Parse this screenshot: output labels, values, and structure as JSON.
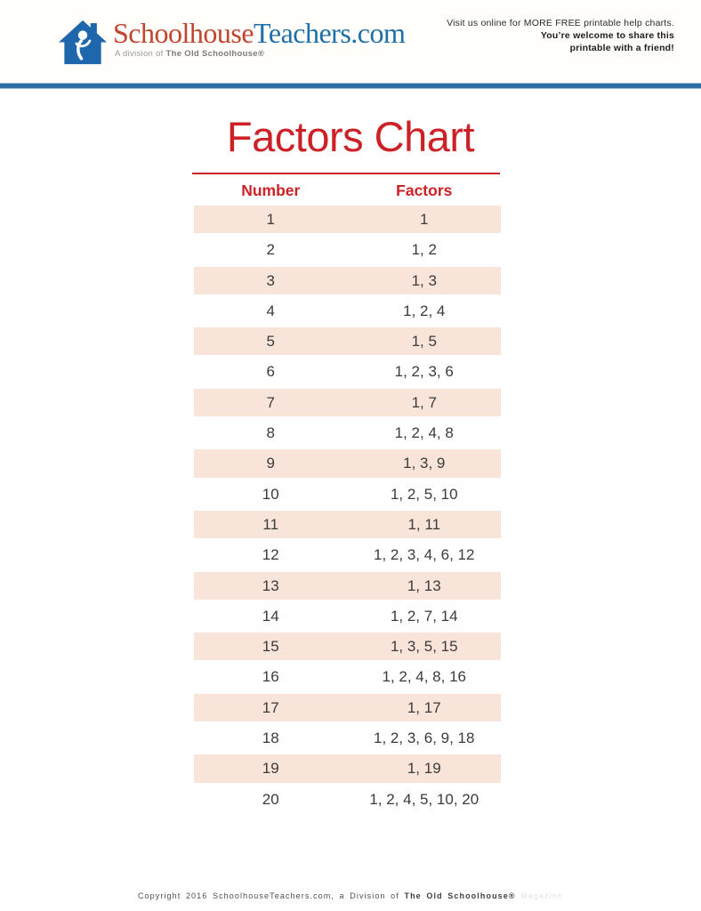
{
  "header": {
    "logo": {
      "icon": "schoolhouse-house-icon",
      "brand_red": "Schoolhouse",
      "brand_blue": "Teachers.com",
      "tagline_prefix": "A division of ",
      "tagline_bold": "The Old Schoolhouse®"
    },
    "promo": {
      "line1": "Visit us online for MORE FREE printable help charts.",
      "line2": "You’re welcome to share this",
      "line3": "printable with a friend!"
    }
  },
  "title": "Factors Chart",
  "table": {
    "col1_header": "Number",
    "col2_header": "Factors",
    "rows": [
      {
        "number": "1",
        "factors": "1"
      },
      {
        "number": "2",
        "factors": "1, 2"
      },
      {
        "number": "3",
        "factors": "1, 3"
      },
      {
        "number": "4",
        "factors": "1, 2, 4"
      },
      {
        "number": "5",
        "factors": "1, 5"
      },
      {
        "number": "6",
        "factors": "1, 2, 3, 6"
      },
      {
        "number": "7",
        "factors": "1, 7"
      },
      {
        "number": "8",
        "factors": "1, 2, 4, 8"
      },
      {
        "number": "9",
        "factors": "1, 3, 9"
      },
      {
        "number": "10",
        "factors": "1, 2, 5, 10"
      },
      {
        "number": "11",
        "factors": "1, 11"
      },
      {
        "number": "12",
        "factors": "1, 2, 3, 4, 6, 12"
      },
      {
        "number": "13",
        "factors": "1, 13"
      },
      {
        "number": "14",
        "factors": "1, 2, 7, 14"
      },
      {
        "number": "15",
        "factors": "1, 3, 5, 15"
      },
      {
        "number": "16",
        "factors": "1, 2, 4, 8, 16"
      },
      {
        "number": "17",
        "factors": "1, 17"
      },
      {
        "number": "18",
        "factors": "1, 2, 3, 6, 9, 18"
      },
      {
        "number": "19",
        "factors": "1, 19"
      },
      {
        "number": "20",
        "factors": "1, 2, 4, 5, 10, 20"
      }
    ]
  },
  "footer": {
    "text_regular": "Copyright 2016 SchoolhouseTeachers.com, a Division of ",
    "text_bold": "The Old Schoolhouse®",
    "text_faint": " Magazine"
  },
  "colors": {
    "accent_red": "#cd2128",
    "band_pink": "#f9e4d9",
    "divider_blue": "#2d6da5",
    "logo_red": "#c0452f",
    "logo_blue": "#1e6ea7",
    "house_blue": "#1f67ad",
    "text_dark": "#3b3b3b",
    "tagline_gray": "#9a9a9a",
    "footer_gray": "#4f4f4f",
    "faint_gray": "#e2e2e2"
  }
}
